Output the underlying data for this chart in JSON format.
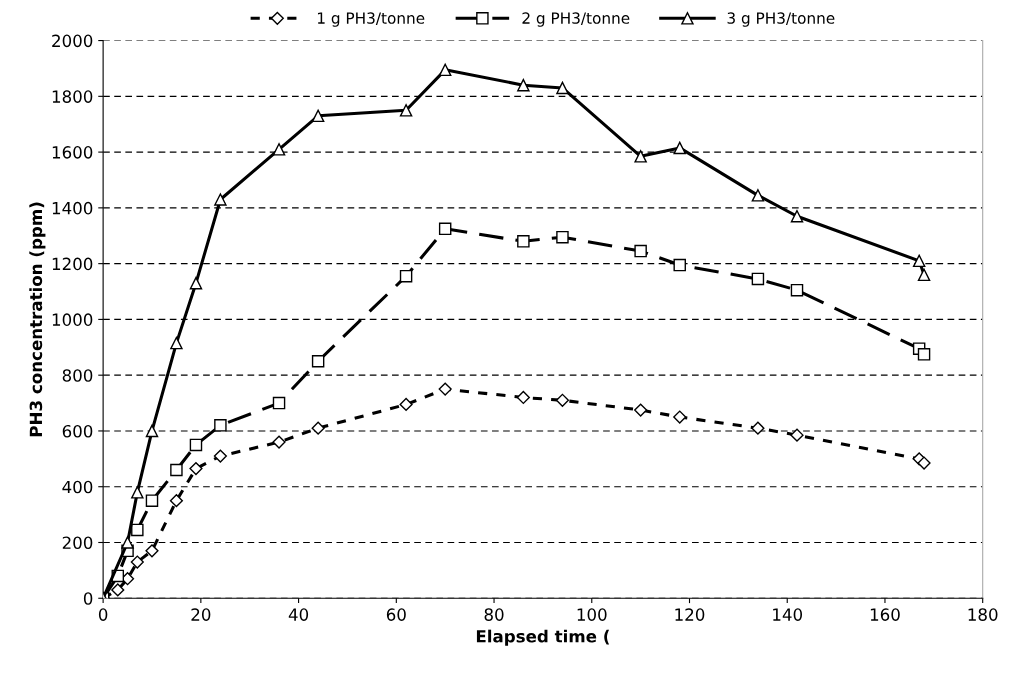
{
  "chart_data": {
    "type": "line",
    "xlabel": "Elapsed time (",
    "ylabel": "PH3 concentration (ppm)",
    "xlim": [
      0,
      180
    ],
    "xticks": [
      0,
      20,
      40,
      60,
      80,
      100,
      120,
      140,
      160,
      180
    ],
    "ylim": [
      0,
      2000
    ],
    "yticks": [
      0,
      200,
      400,
      600,
      800,
      1000,
      1200,
      1400,
      1600,
      1800,
      2000
    ],
    "grid": "y",
    "legend": "top",
    "series": [
      {
        "name": "1 g PH3/tonne",
        "color": "#000000",
        "marker": "diamond",
        "line_style": "dotted",
        "x": [
          0,
          3,
          5,
          7,
          10,
          15,
          19,
          24,
          36,
          44,
          62,
          70,
          86,
          94,
          110,
          118,
          134,
          142,
          167,
          168
        ],
        "values": [
          0,
          30,
          70,
          130,
          170,
          350,
          465,
          510,
          560,
          610,
          695,
          750,
          720,
          710,
          675,
          650,
          610,
          585,
          500,
          485
        ]
      },
      {
        "name": "2 g PH3/tonne",
        "color": "#000000",
        "marker": "square",
        "line_style": "dashed",
        "x": [
          0,
          3,
          5,
          7,
          10,
          15,
          19,
          24,
          36,
          44,
          62,
          70,
          86,
          94,
          110,
          118,
          134,
          142,
          167,
          168
        ],
        "values": [
          0,
          80,
          170,
          245,
          350,
          460,
          550,
          620,
          700,
          850,
          1155,
          1325,
          1280,
          1295,
          1245,
          1195,
          1145,
          1105,
          895,
          875
        ]
      },
      {
        "name": "3 g PH3/tonne",
        "color": "#000000",
        "marker": "triangle",
        "line_style": "solid",
        "x": [
          0,
          5,
          7,
          10,
          15,
          19,
          24,
          36,
          44,
          62,
          70,
          86,
          94,
          110,
          118,
          134,
          142,
          167,
          168
        ],
        "values": [
          0,
          200,
          380,
          600,
          915,
          1130,
          1430,
          1610,
          1730,
          1750,
          1895,
          1840,
          1830,
          1585,
          1615,
          1445,
          1370,
          1210,
          1160
        ]
      }
    ]
  }
}
